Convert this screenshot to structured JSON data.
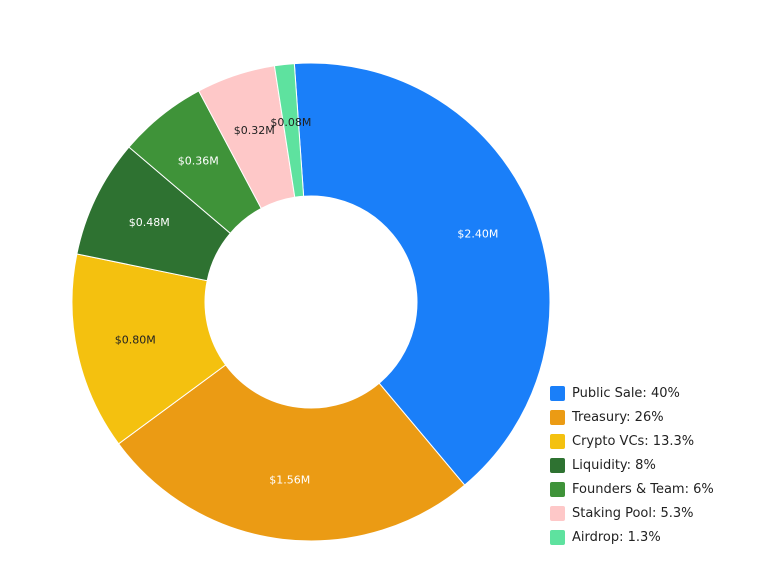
{
  "chart_data": {
    "type": "pie",
    "donut": true,
    "title": "",
    "categories": [
      "Public Sale",
      "Treasury",
      "Crypto VCs",
      "Liquidity",
      "Founders & Team",
      "Staking Pool",
      "Airdrop"
    ],
    "values": [
      2.4,
      1.56,
      0.8,
      0.48,
      0.36,
      0.32,
      0.08
    ],
    "value_labels": [
      "$2.40M",
      "$1.56M",
      "$0.80M",
      "$0.48M",
      "$0.36M",
      "$0.32M",
      "$0.08M"
    ],
    "legend_labels": [
      "Public Sale: 40%",
      "Treasury: 26%",
      "Crypto VCs: 13.3%",
      "Liquidity: 8%",
      "Founders & Team: 6%",
      "Staking Pool: 5.3%",
      "Airdrop: 1.3%"
    ],
    "colors": [
      "#1a7ff9",
      "#eb9b14",
      "#f4c10f",
      "#2e7231",
      "#3f9339",
      "#fec8c8",
      "#5ee29f"
    ],
    "label_colors": [
      "#ffffff",
      "#ffffff",
      "#222222",
      "#ffffff",
      "#ffffff",
      "#222222",
      "#222222"
    ],
    "legend_position": "bottom-right",
    "start_angle_deg": -4
  }
}
